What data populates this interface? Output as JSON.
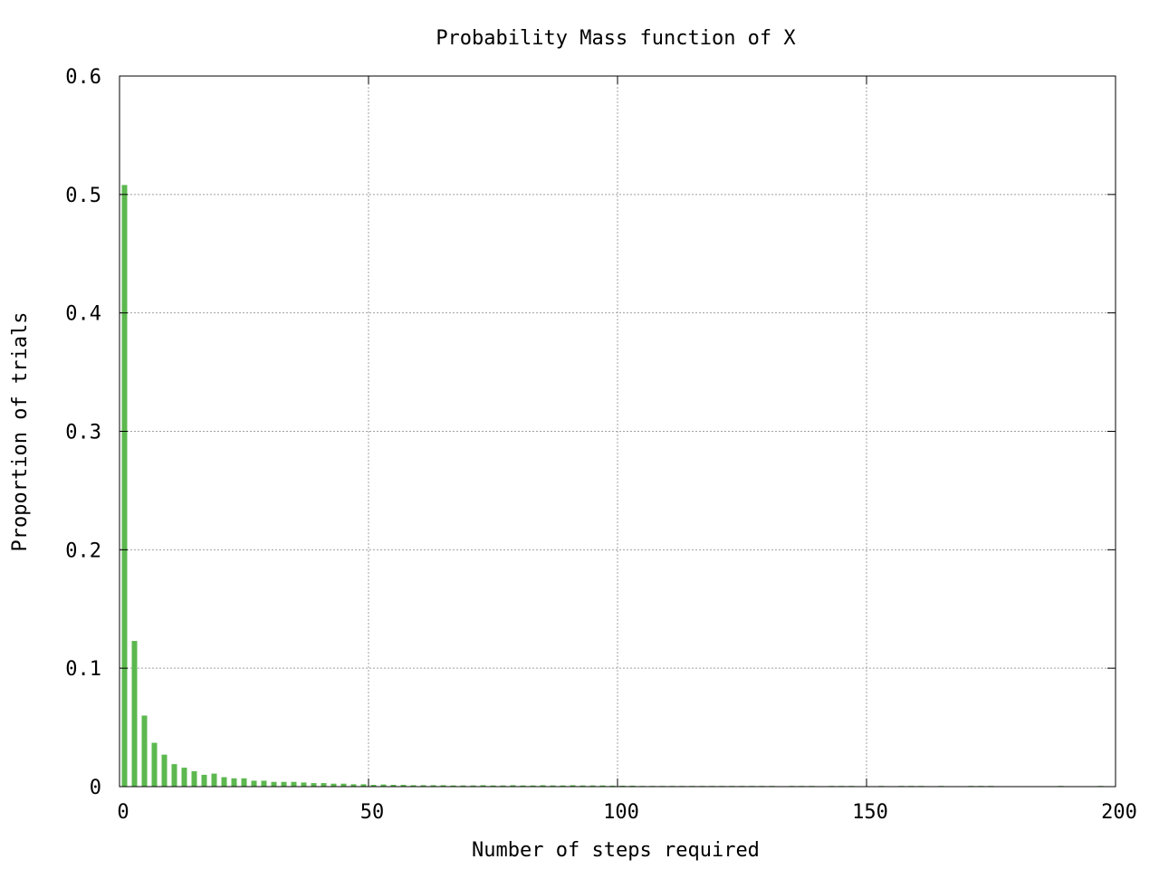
{
  "chart_data": {
    "type": "bar",
    "title": "Probability Mass function of X",
    "xlabel": "Number of steps required",
    "ylabel": "Proportion of trials",
    "xlim": [
      0,
      200
    ],
    "ylim": [
      0,
      0.6
    ],
    "xticks": [
      0,
      50,
      100,
      150,
      200
    ],
    "yticks": [
      0,
      0.1,
      0.2,
      0.3,
      0.4,
      0.5,
      0.6
    ],
    "xtick_labels": [
      "0",
      "50",
      "100",
      "150",
      "200"
    ],
    "ytick_labels": [
      "0",
      "0.1",
      "0.2",
      "0.3",
      "0.4",
      "0.5",
      "0.6"
    ],
    "grid": true,
    "legend": "none",
    "bar_color": "#5cb84f",
    "x": [
      1,
      3,
      5,
      7,
      9,
      11,
      13,
      15,
      17,
      19,
      21,
      23,
      25,
      27,
      29,
      31,
      33,
      35,
      37,
      39,
      41,
      43,
      45,
      47,
      49,
      51,
      53,
      55,
      57,
      59,
      61,
      63,
      65,
      67,
      69,
      71,
      73,
      75,
      77,
      79,
      81,
      83,
      85,
      87,
      89,
      91,
      93,
      95,
      97,
      99,
      101,
      103,
      105,
      107,
      109,
      111,
      113,
      115,
      117,
      119,
      121,
      123,
      125,
      127,
      129,
      131,
      135,
      137,
      139,
      143,
      145,
      147,
      153,
      157,
      159,
      161,
      165,
      171,
      173,
      175,
      189,
      197
    ],
    "values": [
      0.508,
      0.123,
      0.06,
      0.037,
      0.027,
      0.019,
      0.016,
      0.013,
      0.01,
      0.011,
      0.008,
      0.007,
      0.007,
      0.005,
      0.005,
      0.004,
      0.004,
      0.004,
      0.0035,
      0.003,
      0.003,
      0.0025,
      0.0025,
      0.002,
      0.002,
      0.0015,
      0.0018,
      0.0015,
      0.0015,
      0.0012,
      0.0012,
      0.0012,
      0.0012,
      0.001,
      0.001,
      0.001,
      0.0012,
      0.001,
      0.001,
      0.0012,
      0.001,
      0.001,
      0.0012,
      0.001,
      0.001,
      0.0012,
      0.001,
      0.001,
      0.001,
      0.0008,
      0.0008,
      0.0008,
      0.0006,
      0.0006,
      0.0006,
      0.0006,
      0.0006,
      0.0006,
      0.0006,
      0.0006,
      0.0006,
      0.0006,
      0.0006,
      0.0006,
      0.0006,
      0.0006,
      0.0006,
      0.0006,
      0.0006,
      0.0006,
      0.0006,
      0.0006,
      0.0006,
      0.0006,
      0.0006,
      0.0006,
      0.0006,
      0.0006,
      0.0006,
      0.0006,
      0.0006,
      0.0006
    ]
  }
}
